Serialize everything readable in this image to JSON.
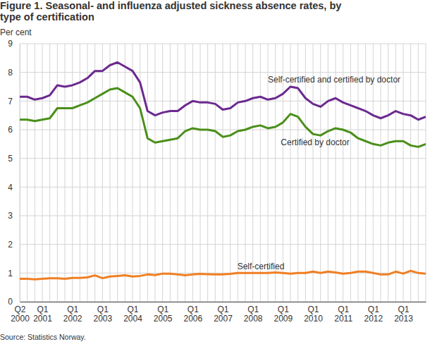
{
  "chart_data": {
    "type": "line",
    "title": "Figure 1. Seasonal- and influenza adjusted sickness absence rates, by type of certification",
    "y_label": "Per cent",
    "source": "Source: Statistics Norway.",
    "categories": [
      "Q2 2000",
      null,
      null,
      "Q1 2001",
      null,
      null,
      null,
      "Q1 2002",
      null,
      null,
      null,
      "Q1 2003",
      null,
      null,
      null,
      "Q1 2004",
      null,
      null,
      null,
      "Q1 2005",
      null,
      null,
      null,
      "Q1 2006",
      null,
      null,
      null,
      "Q1 2007",
      null,
      null,
      null,
      "Q1 2008",
      null,
      null,
      null,
      "Q1 2009",
      null,
      null,
      null,
      "Q1 2010",
      null,
      null,
      null,
      "Q1 2011",
      null,
      null,
      null,
      "Q1 2012",
      null,
      null,
      null,
      "Q1 2013",
      null,
      null,
      null
    ],
    "series": [
      {
        "name": "Self-certified and certified by doctor",
        "color": "#6b2a8f",
        "values": [
          7.15,
          7.15,
          7.05,
          7.1,
          7.2,
          7.55,
          7.5,
          7.55,
          7.65,
          7.8,
          8.05,
          8.05,
          8.25,
          8.35,
          8.2,
          8.05,
          7.65,
          6.65,
          6.5,
          6.6,
          6.65,
          6.65,
          6.85,
          7.0,
          6.95,
          6.95,
          6.9,
          6.7,
          6.75,
          6.95,
          7.0,
          7.1,
          7.15,
          7.05,
          7.1,
          7.25,
          7.5,
          7.45,
          7.1,
          6.9,
          6.8,
          7.0,
          7.1,
          6.95,
          6.85,
          6.75,
          6.65,
          6.5,
          6.4,
          6.5,
          6.65,
          6.55,
          6.5,
          6.35,
          6.45
        ]
      },
      {
        "name": "Certified by doctor",
        "color": "#4a8f1a",
        "values": [
          6.35,
          6.35,
          6.3,
          6.35,
          6.4,
          6.75,
          6.75,
          6.75,
          6.85,
          6.95,
          7.1,
          7.25,
          7.4,
          7.45,
          7.3,
          7.15,
          6.75,
          5.7,
          5.55,
          5.6,
          5.65,
          5.7,
          5.95,
          6.05,
          6.0,
          6.0,
          5.95,
          5.75,
          5.8,
          5.95,
          6.0,
          6.1,
          6.15,
          6.05,
          6.1,
          6.25,
          6.55,
          6.45,
          6.1,
          5.85,
          5.8,
          5.95,
          6.05,
          6.0,
          5.9,
          5.7,
          5.6,
          5.5,
          5.45,
          5.55,
          5.6,
          5.6,
          5.45,
          5.4,
          5.5
        ]
      },
      {
        "name": "Self-certified",
        "color": "#f07f22",
        "values": [
          0.8,
          0.8,
          0.78,
          0.8,
          0.82,
          0.82,
          0.8,
          0.83,
          0.83,
          0.85,
          0.92,
          0.82,
          0.88,
          0.9,
          0.92,
          0.88,
          0.9,
          0.95,
          0.93,
          0.98,
          0.98,
          0.95,
          0.92,
          0.95,
          0.97,
          0.96,
          0.95,
          0.95,
          0.97,
          1.0,
          1.0,
          1.0,
          1.0,
          1.0,
          1.02,
          1.0,
          0.98,
          1.0,
          1.0,
          1.05,
          1.0,
          1.05,
          1.02,
          0.98,
          1.0,
          1.05,
          1.05,
          1.0,
          0.95,
          0.95,
          1.05,
          0.98,
          1.08,
          1.0,
          0.98
        ]
      }
    ],
    "ylim": [
      0,
      9
    ],
    "yticks": [
      0,
      1,
      2,
      3,
      4,
      5,
      6,
      7,
      8,
      9
    ],
    "grid": true
  }
}
